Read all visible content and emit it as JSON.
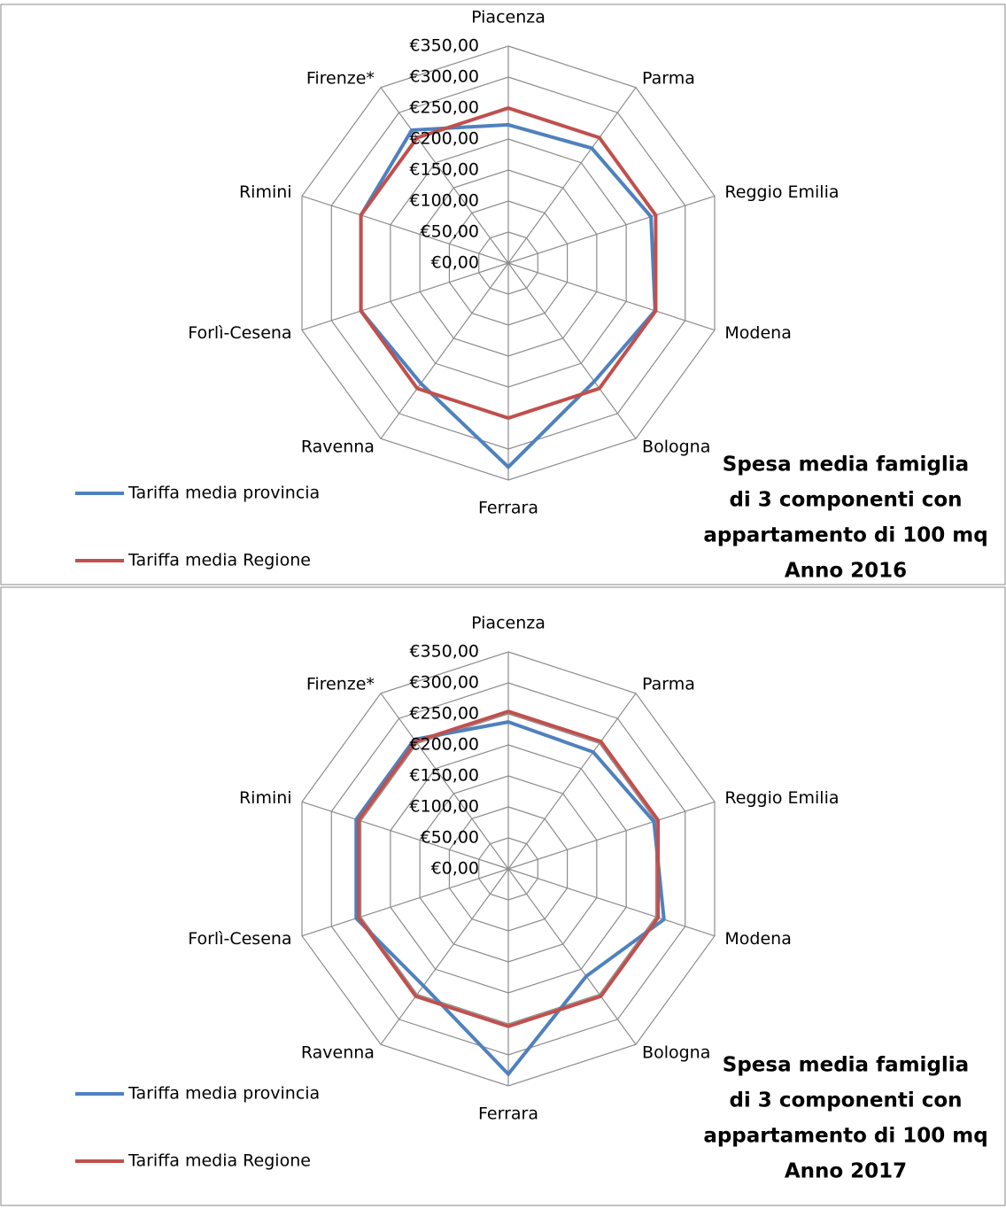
{
  "chart_data": [
    {
      "type": "radar",
      "categories": [
        "Piacenza",
        "Parma",
        "Reggio Emilia",
        "Modena",
        "Bologna",
        "Ferrara",
        "Ravenna",
        "Forlì-Cesena",
        "Rimini",
        "Firenze*"
      ],
      "series": [
        {
          "name": "Tariffa media provincia",
          "color": "#4f81bd",
          "values": [
            223,
            229,
            242,
            249,
            236,
            329,
            240,
            250,
            250,
            265
          ]
        },
        {
          "name": "Tariffa media Regione",
          "color": "#c0504d",
          "values": [
            250,
            250,
            250,
            250,
            250,
            250,
            250,
            250,
            250,
            250
          ]
        }
      ],
      "ylim": [
        0,
        350
      ],
      "yticks": [
        {
          "value": 0,
          "label": "€0,00"
        },
        {
          "value": 50,
          "label": "€50,00"
        },
        {
          "value": 100,
          "label": "€100,00"
        },
        {
          "value": 150,
          "label": "€150,00"
        },
        {
          "value": 200,
          "label": "€200,00"
        },
        {
          "value": 250,
          "label": "€250,00"
        },
        {
          "value": 300,
          "label": "€300,00"
        },
        {
          "value": 350,
          "label": "€350,00"
        }
      ],
      "grid": true,
      "title": [
        "Spesa media famiglia",
        "di 3 componenti con",
        "appartamento di 100 mq",
        "Anno 2016"
      ]
    },
    {
      "type": "radar",
      "categories": [
        "Piacenza",
        "Parma",
        "Reggio Emilia",
        "Modena",
        "Bologna",
        "Ferrara",
        "Ravenna",
        "Forlì-Cesena",
        "Rimini",
        "Firenze*"
      ],
      "series": [
        {
          "name": "Tariffa media provincia",
          "color": "#4f81bd",
          "values": [
            237,
            233,
            247,
            264,
            214,
            331,
            233,
            258,
            258,
            258
          ]
        },
        {
          "name": "Tariffa media Regione",
          "color": "#c0504d",
          "values": [
            254,
            254,
            254,
            254,
            254,
            254,
            254,
            254,
            254,
            254
          ]
        }
      ],
      "ylim": [
        0,
        350
      ],
      "yticks": [
        {
          "value": 0,
          "label": "€0,00"
        },
        {
          "value": 50,
          "label": "€50,00"
        },
        {
          "value": 100,
          "label": "€100,00"
        },
        {
          "value": 150,
          "label": "€150,00"
        },
        {
          "value": 200,
          "label": "€200,00"
        },
        {
          "value": 250,
          "label": "€250,00"
        },
        {
          "value": 300,
          "label": "€300,00"
        },
        {
          "value": 350,
          "label": "€350,00"
        }
      ],
      "grid": true,
      "title": [
        "Spesa media famiglia",
        "di 3 componenti con",
        "appartamento di 100 mq",
        "Anno 2017"
      ]
    }
  ]
}
